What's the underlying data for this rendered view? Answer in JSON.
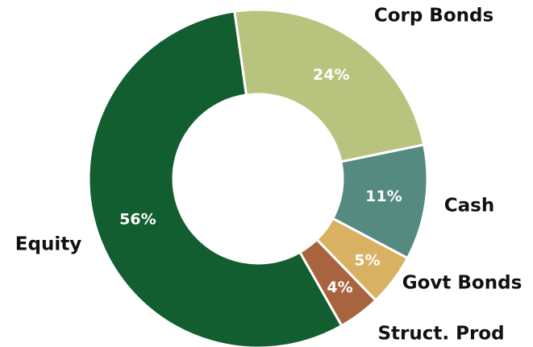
{
  "chart_data": {
    "type": "donut",
    "categories": [
      "Corp Bonds",
      "Cash",
      "Govt Bonds",
      "Struct. Prod",
      "Equity"
    ],
    "values": [
      24,
      11,
      5,
      4,
      56
    ],
    "value_labels": [
      "24%",
      "11%",
      "5%",
      "4%",
      "56%"
    ],
    "colors": [
      "#b8c47e",
      "#548a80",
      "#d9b163",
      "#a8643f",
      "#135e30"
    ]
  }
}
